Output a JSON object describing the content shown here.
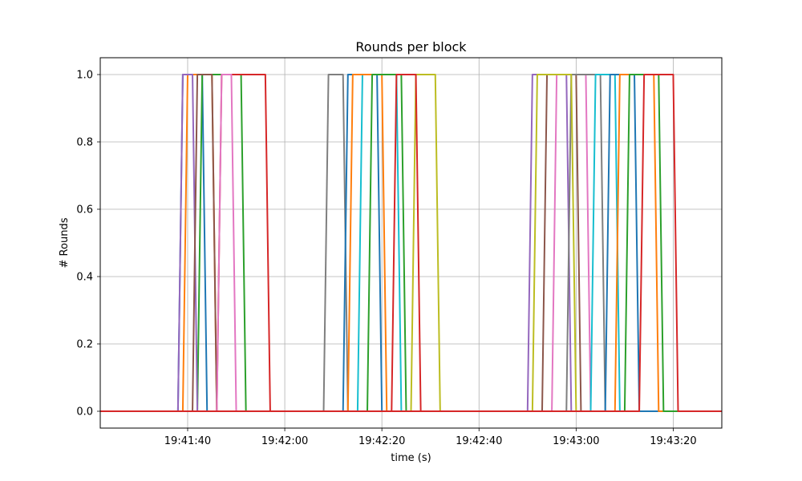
{
  "chart_data": {
    "type": "line",
    "title": "Rounds per block",
    "xlabel": "time (s)",
    "ylabel": "# Rounds",
    "grid": true,
    "legend": "none",
    "xlim": [
      "19:41:22",
      "19:43:30"
    ],
    "ylim": [
      -0.05,
      1.05
    ],
    "x_ticks": [
      "19:41:40",
      "19:42:00",
      "19:42:20",
      "19:42:40",
      "19:43:00",
      "19:43:20"
    ],
    "y_ticks": [
      "0.0",
      "0.2",
      "0.4",
      "0.6",
      "0.8",
      "1.0"
    ],
    "colors": [
      "#1f77b4",
      "#ff7f0e",
      "#2ca02c",
      "#d62728",
      "#9467bd",
      "#8c564b",
      "#e377c2",
      "#7f7f7f",
      "#bcbd22",
      "#17becf"
    ],
    "series": [
      {
        "values_time": [
          [
            "19:41:38",
            0
          ],
          [
            "19:41:39",
            1
          ],
          [
            "19:41:43",
            1
          ],
          [
            "19:41:44",
            0
          ]
        ]
      },
      {
        "values_time": [
          [
            "19:41:39",
            0
          ],
          [
            "19:41:40",
            1
          ],
          [
            "19:41:45",
            1
          ],
          [
            "19:41:46",
            0
          ]
        ]
      },
      {
        "values_time": [
          [
            "19:41:42",
            0
          ],
          [
            "19:41:43",
            1
          ],
          [
            "19:41:51",
            1
          ],
          [
            "19:41:52",
            0
          ]
        ]
      },
      {
        "values_time": [
          [
            "19:41:46",
            0
          ],
          [
            "19:41:47",
            1
          ],
          [
            "19:41:56",
            1
          ],
          [
            "19:41:57",
            0
          ]
        ]
      },
      {
        "values_time": [
          [
            "19:41:38",
            0
          ],
          [
            "19:41:39",
            1
          ],
          [
            "19:41:41",
            1
          ],
          [
            "19:41:42",
            0
          ]
        ]
      },
      {
        "values_time": [
          [
            "19:41:41",
            0
          ],
          [
            "19:41:42",
            1
          ],
          [
            "19:41:45",
            1
          ],
          [
            "19:41:46",
            0
          ]
        ]
      },
      {
        "values_time": [
          [
            "19:41:46",
            0
          ],
          [
            "19:41:47",
            1
          ],
          [
            "19:41:49",
            1
          ],
          [
            "19:41:50",
            0
          ]
        ]
      },
      {
        "values_time": [
          [
            "19:42:08",
            0
          ],
          [
            "19:42:09",
            1
          ],
          [
            "19:42:12",
            1
          ],
          [
            "19:42:13",
            0
          ]
        ]
      },
      {
        "values_time": [
          [
            "19:42:26",
            0
          ],
          [
            "19:42:27",
            1
          ],
          [
            "19:42:31",
            1
          ],
          [
            "19:42:32",
            0
          ]
        ]
      },
      {
        "values_time": [
          [
            "19:42:15",
            0
          ],
          [
            "19:42:16",
            1
          ],
          [
            "19:42:23",
            1
          ],
          [
            "19:42:24",
            0
          ]
        ]
      },
      {
        "values_time": [
          [
            "19:42:12",
            0
          ],
          [
            "19:42:13",
            1
          ],
          [
            "19:42:19",
            1
          ],
          [
            "19:42:20",
            0
          ]
        ]
      },
      {
        "values_time": [
          [
            "19:42:13",
            0
          ],
          [
            "19:42:14",
            1
          ],
          [
            "19:42:20",
            1
          ],
          [
            "19:42:21",
            0
          ]
        ]
      },
      {
        "values_time": [
          [
            "19:42:17",
            0
          ],
          [
            "19:42:18",
            1
          ],
          [
            "19:42:24",
            1
          ],
          [
            "19:42:25",
            0
          ]
        ]
      },
      {
        "values_time": [
          [
            "19:42:22",
            0
          ],
          [
            "19:42:23",
            1
          ],
          [
            "19:42:27",
            1
          ],
          [
            "19:42:28",
            0
          ]
        ]
      },
      {
        "values_time": [
          [
            "19:42:50",
            0
          ],
          [
            "19:42:51",
            1
          ],
          [
            "19:42:58",
            1
          ],
          [
            "19:42:59",
            0
          ]
        ]
      },
      {
        "values_time": [
          [
            "19:42:53",
            0
          ],
          [
            "19:42:54",
            1
          ],
          [
            "19:43:00",
            1
          ],
          [
            "19:43:01",
            0
          ]
        ]
      },
      {
        "values_time": [
          [
            "19:42:55",
            0
          ],
          [
            "19:42:56",
            1
          ],
          [
            "19:43:02",
            1
          ],
          [
            "19:43:03",
            0
          ]
        ]
      },
      {
        "values_time": [
          [
            "19:42:58",
            0
          ],
          [
            "19:42:59",
            1
          ],
          [
            "19:43:05",
            1
          ],
          [
            "19:43:06",
            0
          ]
        ]
      },
      {
        "values_time": [
          [
            "19:42:51",
            0
          ],
          [
            "19:42:52",
            1
          ],
          [
            "19:42:59",
            1
          ],
          [
            "19:43:00",
            0
          ]
        ]
      },
      {
        "values_time": [
          [
            "19:43:03",
            0
          ],
          [
            "19:43:04",
            1
          ],
          [
            "19:43:08",
            1
          ],
          [
            "19:43:09",
            0
          ]
        ]
      },
      {
        "values_time": [
          [
            "19:43:06",
            0
          ],
          [
            "19:43:07",
            1
          ],
          [
            "19:43:12",
            1
          ],
          [
            "19:43:13",
            0
          ]
        ]
      },
      {
        "values_time": [
          [
            "19:43:08",
            0
          ],
          [
            "19:43:09",
            1
          ],
          [
            "19:43:16",
            1
          ],
          [
            "19:43:17",
            0
          ]
        ]
      },
      {
        "values_time": [
          [
            "19:43:10",
            0
          ],
          [
            "19:43:11",
            1
          ],
          [
            "19:43:17",
            1
          ],
          [
            "19:43:18",
            0
          ]
        ]
      },
      {
        "values_time": [
          [
            "19:43:13",
            0
          ],
          [
            "19:43:14",
            1
          ],
          [
            "19:43:20",
            1
          ],
          [
            "19:43:21",
            0
          ]
        ]
      }
    ]
  }
}
